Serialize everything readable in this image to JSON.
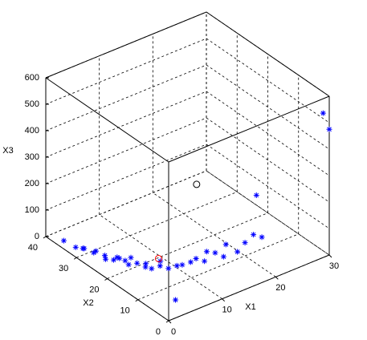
{
  "chart_data": {
    "type": "scatter3d",
    "xlabel": "X1",
    "ylabel": "X2",
    "zlabel": "X3",
    "xlim": [
      0,
      30
    ],
    "xticks": [
      0,
      10,
      20,
      30
    ],
    "ylim": [
      0,
      40
    ],
    "yticks": [
      0,
      10,
      20,
      30,
      40
    ],
    "zlim": [
      0,
      600
    ],
    "zticks": [
      0,
      100,
      200,
      300,
      400,
      500,
      600
    ],
    "grid": true,
    "series": [
      {
        "marker": "asterisk",
        "color": "#0000ff",
        "x": [
          0.5,
          1,
          1.2,
          2,
          2.5,
          1.5,
          3,
          2,
          3.5,
          4,
          3,
          4.5,
          5,
          4,
          5,
          6,
          5.5,
          6,
          7,
          6.5,
          8,
          9,
          10,
          11,
          12,
          13,
          14,
          15,
          16,
          17,
          18,
          20,
          21,
          22,
          25,
          30,
          30,
          3
        ],
        "y": [
          35,
          32,
          30,
          31,
          28,
          27,
          26,
          24,
          24,
          23,
          22,
          22,
          21,
          20,
          19,
          18,
          17,
          16,
          15,
          14,
          14,
          13,
          13,
          12,
          12,
          11,
          12,
          11,
          10,
          11,
          9,
          10,
          9,
          8,
          15,
          2,
          0,
          3
        ],
        "z": [
          20,
          15,
          25,
          10,
          20,
          30,
          15,
          25,
          10,
          20,
          40,
          15,
          30,
          20,
          25,
          10,
          35,
          20,
          30,
          60,
          20,
          30,
          25,
          35,
          40,
          30,
          50,
          45,
          30,
          60,
          40,
          50,
          80,
          70,
          148,
          520,
          475,
          30
        ]
      },
      {
        "marker": "circle",
        "color": "#000000",
        "x": [
          16.7
        ],
        "y": [
          20
        ],
        "z": [
          218
        ]
      },
      {
        "marker": "circle",
        "color": "#ff0000",
        "x": [
          5
        ],
        "y": [
          12
        ],
        "z": [
          98
        ]
      }
    ]
  }
}
